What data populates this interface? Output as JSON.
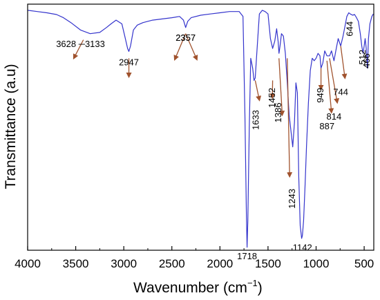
{
  "chart_data": {
    "type": "line",
    "title": "",
    "xlabel": "Wavenumber (cm",
    "xlabel_sup": "−1",
    "xlabel_close": ")",
    "ylabel": "Transmittance (a.u)",
    "xlim": [
      4000,
      400
    ],
    "ylim": [
      0,
      1
    ],
    "y_ticks_labeled": false,
    "x_ticks": [
      4000,
      3500,
      3000,
      2500,
      2000,
      1500,
      1000,
      500
    ],
    "x_tick_labels": [
      "4000",
      "3500",
      "3000",
      "2500",
      "2000",
      "1500",
      "1000",
      "500"
    ],
    "line_color": "#3333cc",
    "arrow_color": "#a0522d",
    "series": [
      {
        "x": [
          4000,
          3900,
          3800,
          3700,
          3628,
          3550,
          3450,
          3350,
          3250,
          3180,
          3133,
          3080,
          3020,
          2990,
          2960,
          2947,
          2930,
          2900,
          2860,
          2800,
          2700,
          2600,
          2500,
          2420,
          2380,
          2357,
          2335,
          2300,
          2200,
          2100,
          2000,
          1900,
          1800,
          1760,
          1740,
          1725,
          1718,
          1710,
          1695,
          1680,
          1660,
          1645,
          1633,
          1620,
          1590,
          1560,
          1530,
          1500,
          1475,
          1452,
          1430,
          1410,
          1395,
          1386,
          1375,
          1360,
          1340,
          1320,
          1300,
          1280,
          1260,
          1243,
          1225,
          1210,
          1195,
          1180,
          1165,
          1150,
          1142,
          1130,
          1115,
          1100,
          1080,
          1060,
          1040,
          1020,
          1000,
          980,
          960,
          949,
          930,
          910,
          887,
          860,
          840,
          814,
          790,
          770,
          744,
          720,
          700,
          680,
          660,
          644,
          620,
          600,
          580,
          560,
          540,
          525,
          512,
          500,
          490,
          478,
          466,
          455,
          440,
          420,
          405
        ],
        "y": [
          0.975,
          0.97,
          0.965,
          0.958,
          0.945,
          0.925,
          0.895,
          0.88,
          0.885,
          0.905,
          0.92,
          0.935,
          0.92,
          0.87,
          0.82,
          0.808,
          0.83,
          0.895,
          0.915,
          0.925,
          0.935,
          0.94,
          0.945,
          0.95,
          0.935,
          0.905,
          0.93,
          0.945,
          0.955,
          0.96,
          0.965,
          0.97,
          0.97,
          0.95,
          0.55,
          0.15,
          0.012,
          0.12,
          0.5,
          0.78,
          0.74,
          0.69,
          0.7,
          0.78,
          0.96,
          0.975,
          0.97,
          0.96,
          0.86,
          0.82,
          0.85,
          0.9,
          0.85,
          0.8,
          0.83,
          0.88,
          0.87,
          0.8,
          0.68,
          0.55,
          0.48,
          0.42,
          0.52,
          0.68,
          0.64,
          0.3,
          0.1,
          0.048,
          0.06,
          0.12,
          0.26,
          0.42,
          0.6,
          0.73,
          0.78,
          0.77,
          0.78,
          0.8,
          0.79,
          0.74,
          0.76,
          0.81,
          0.79,
          0.79,
          0.81,
          0.77,
          0.82,
          0.86,
          0.83,
          0.87,
          0.91,
          0.95,
          0.965,
          0.96,
          0.955,
          0.958,
          0.945,
          0.93,
          0.88,
          0.83,
          0.8,
          0.83,
          0.86,
          0.82,
          0.74,
          0.86,
          0.92,
          0.95,
          0.96
        ]
      }
    ],
    "annotations": [
      {
        "label": "3628 ─3133",
        "x": 3450,
        "y": 0.875,
        "rotate": 0,
        "tx": 3420,
        "ty": 0.855,
        "ax": 3520,
        "ay": 0.78
      },
      {
        "label": "2947",
        "x": 2947,
        "y": 0.8,
        "rotate": 0,
        "tx": 2947,
        "ty": 0.78,
        "ax": 2947,
        "ay": 0.705
      },
      {
        "label": "2357",
        "x": 2357,
        "y": 0.9,
        "rotate": 0,
        "tx": 2357,
        "ty": 0.88,
        "ax": 2470,
        "ay": 0.775
      },
      {
        "label": "2357",
        "x": 2357,
        "y": 0.9,
        "rotate": 0,
        "tx": 2357,
        "ty": 0.88,
        "ax": 2240,
        "ay": 0.775
      },
      {
        "label": "1718",
        "x": 1718,
        "y": 0.012,
        "rotate": 0,
        "tx": null,
        "ty": null,
        "ax": null,
        "ay": null
      },
      {
        "label": "1633",
        "x": 1620,
        "y": 0.57,
        "rotate": -90,
        "tx": 1633,
        "ty": 0.69,
        "ax": 1590,
        "ay": 0.61
      },
      {
        "label": "1452",
        "x": 1452,
        "y": 0.66,
        "rotate": -90,
        "tx": 1452,
        "ty": 0.69,
        "ax": 1455,
        "ay": 0.62
      },
      {
        "label": "1386",
        "x": 1386,
        "y": 0.6,
        "rotate": -90,
        "tx": 1386,
        "ty": 0.78,
        "ax": 1352,
        "ay": 0.55
      },
      {
        "label": "1243",
        "x": 1243,
        "y": 0.25,
        "rotate": -90,
        "tx": 1300,
        "ty": 0.78,
        "ax": 1275,
        "ay": 0.3
      },
      {
        "label": "1142",
        "x": 1142,
        "y": 0.048,
        "rotate": 0,
        "tx": null,
        "ty": null,
        "ax": null,
        "ay": null
      },
      {
        "label": "949",
        "x": 949,
        "y": 0.66,
        "rotate": -90,
        "tx": 949,
        "ty": 0.74,
        "ax": 949,
        "ay": 0.655
      },
      {
        "label": "887",
        "x": 887,
        "y": 0.54,
        "rotate": 0,
        "tx": 887,
        "ty": 0.77,
        "ax": 840,
        "ay": 0.56
      },
      {
        "label": "814",
        "x": 814,
        "y": 0.58,
        "rotate": 0,
        "tx": 860,
        "ty": 0.78,
        "ax": 780,
        "ay": 0.6
      },
      {
        "label": "744",
        "x": 744,
        "y": 0.68,
        "rotate": 0,
        "tx": 744,
        "ty": 0.83,
        "ax": 700,
        "ay": 0.7
      },
      {
        "label": "644",
        "x": 644,
        "y": 0.93,
        "rotate": -90,
        "tx": null,
        "ty": null,
        "ax": null,
        "ay": null
      },
      {
        "label": "512",
        "x": 512,
        "y": 0.815,
        "rotate": -90,
        "tx": null,
        "ty": null,
        "ax": null,
        "ay": null
      },
      {
        "label": "466",
        "x": 466,
        "y": 0.8,
        "rotate": -90,
        "tx": null,
        "ty": null,
        "ax": null,
        "ay": null
      }
    ]
  }
}
